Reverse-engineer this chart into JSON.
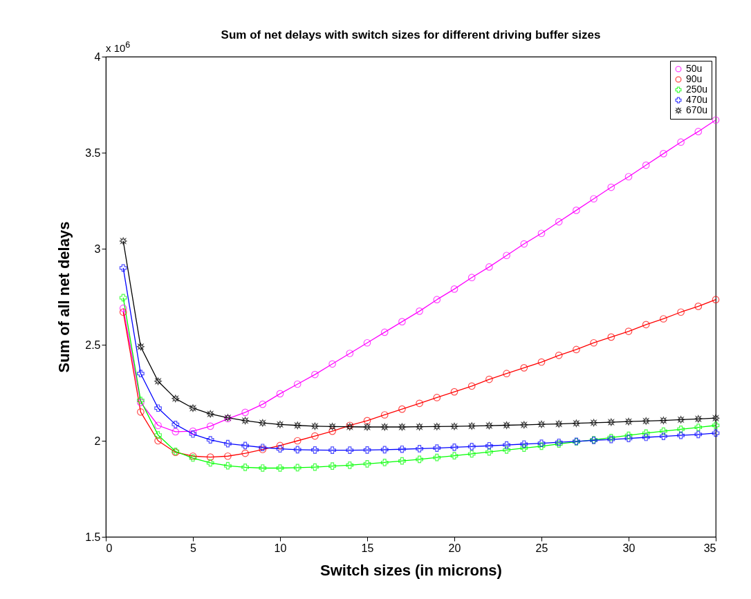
{
  "chart_data": {
    "type": "line",
    "title": "Sum of net delays with switch sizes for different driving buffer sizes",
    "xlabel": "Switch sizes (in microns)",
    "ylabel": "Sum of all net delays",
    "annotations": [
      "x 10$^{6}$"
    ],
    "x": [
      1,
      2,
      3,
      4,
      5,
      6,
      7,
      8,
      9,
      10,
      11,
      12,
      13,
      14,
      15,
      16,
      17,
      18,
      19,
      20,
      21,
      22,
      23,
      24,
      25,
      26,
      27,
      28,
      29,
      30,
      31,
      32,
      33,
      34,
      35
    ],
    "xlim": [
      0,
      35
    ],
    "xticks": [
      0,
      5,
      10,
      15,
      20,
      25,
      30,
      35
    ],
    "ylim": [
      1.5,
      4
    ],
    "yticks": [
      1.5,
      2,
      2.5,
      3,
      3.5,
      4
    ],
    "grid": false,
    "legend": "top right",
    "line_style": "solid",
    "series": [
      {
        "name": "50u",
        "color": "#ff00ff",
        "marker": "circle",
        "values": [
          2.69,
          2.2,
          2.08,
          2.047,
          2.05,
          2.076,
          2.115,
          2.148,
          2.19,
          2.245,
          2.295,
          2.345,
          2.4,
          2.455,
          2.51,
          2.565,
          2.62,
          2.675,
          2.735,
          2.79,
          2.85,
          2.905,
          2.965,
          3.025,
          3.08,
          3.14,
          3.2,
          3.26,
          3.32,
          3.375,
          3.435,
          3.495,
          3.555,
          3.61,
          3.67
        ]
      },
      {
        "name": "90u",
        "color": "#ff0000",
        "marker": "circle",
        "values": [
          2.67,
          2.15,
          2.0,
          1.94,
          1.92,
          1.915,
          1.92,
          1.935,
          1.955,
          1.975,
          2.0,
          2.025,
          2.05,
          2.08,
          2.105,
          2.135,
          2.165,
          2.195,
          2.225,
          2.255,
          2.285,
          2.32,
          2.35,
          2.38,
          2.41,
          2.445,
          2.475,
          2.51,
          2.54,
          2.57,
          2.605,
          2.635,
          2.67,
          2.7,
          2.735
        ]
      },
      {
        "name": "250u",
        "color": "#00ff00",
        "marker": "cross",
        "values": [
          2.745,
          2.21,
          2.03,
          1.945,
          1.91,
          1.885,
          1.87,
          1.862,
          1.858,
          1.858,
          1.86,
          1.863,
          1.868,
          1.873,
          1.88,
          1.887,
          1.895,
          1.903,
          1.913,
          1.922,
          1.932,
          1.942,
          1.952,
          1.962,
          1.972,
          1.983,
          1.995,
          2.005,
          2.017,
          2.028,
          2.04,
          2.05,
          2.06,
          2.07,
          2.08
        ]
      },
      {
        "name": "470u",
        "color": "#0000ff",
        "marker": "cross",
        "values": [
          2.9,
          2.35,
          2.17,
          2.085,
          2.035,
          2.005,
          1.985,
          1.975,
          1.965,
          1.958,
          1.954,
          1.952,
          1.951,
          1.951,
          1.952,
          1.954,
          1.956,
          1.959,
          1.962,
          1.966,
          1.97,
          1.974,
          1.978,
          1.983,
          1.987,
          1.992,
          1.997,
          2.002,
          2.007,
          2.012,
          2.018,
          2.023,
          2.028,
          2.033,
          2.04
        ]
      },
      {
        "name": "670u",
        "color": "#000000",
        "marker": "star",
        "values": [
          3.04,
          2.49,
          2.31,
          2.22,
          2.17,
          2.14,
          2.12,
          2.105,
          2.093,
          2.085,
          2.08,
          2.076,
          2.074,
          2.073,
          2.072,
          2.072,
          2.072,
          2.073,
          2.074,
          2.075,
          2.077,
          2.079,
          2.081,
          2.083,
          2.086,
          2.088,
          2.091,
          2.094,
          2.097,
          2.1,
          2.103,
          2.106,
          2.11,
          2.114,
          2.118
        ]
      }
    ]
  }
}
